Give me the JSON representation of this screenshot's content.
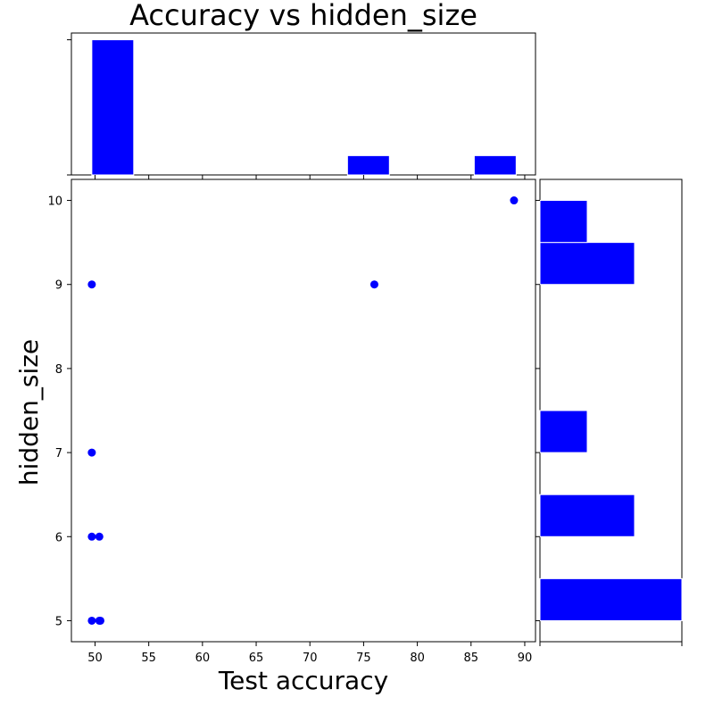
{
  "chart_data": [
    {
      "type": "scatter",
      "title": "Accuracy vs hidden_size",
      "xlabel": "Test accuracy",
      "ylabel": "hidden_size",
      "xlim": [
        47.8,
        91.0
      ],
      "ylim": [
        4.75,
        10.25
      ],
      "xticks": [
        50,
        55,
        60,
        65,
        70,
        75,
        80,
        85,
        90
      ],
      "yticks": [
        5,
        6,
        7,
        8,
        9,
        10
      ],
      "grid": false,
      "marker_color": "#0000ff",
      "points": [
        {
          "x": 49.7,
          "y": 5
        },
        {
          "x": 50.4,
          "y": 5
        },
        {
          "x": 50.5,
          "y": 5
        },
        {
          "x": 49.7,
          "y": 6
        },
        {
          "x": 50.4,
          "y": 6
        },
        {
          "x": 49.7,
          "y": 7
        },
        {
          "x": 49.7,
          "y": 9
        },
        {
          "x": 76.0,
          "y": 9
        },
        {
          "x": 89.0,
          "y": 10
        }
      ]
    },
    {
      "type": "bar",
      "role": "top-marginal-histogram",
      "bar_color": "#0000ff",
      "bins": [
        {
          "x0": 49.7,
          "x1": 53.6,
          "count": 7
        },
        {
          "x0": 73.5,
          "x1": 77.4,
          "count": 1
        },
        {
          "x0": 85.3,
          "x1": 89.2,
          "count": 1
        }
      ],
      "ylim": [
        0,
        7.35
      ]
    },
    {
      "type": "bar",
      "role": "right-marginal-histogram",
      "orientation": "horizontal",
      "bar_color": "#0000ff",
      "bins": [
        {
          "y0": 5.0,
          "y1": 5.5,
          "count": 3
        },
        {
          "y0": 6.0,
          "y1": 6.5,
          "count": 2
        },
        {
          "y0": 7.0,
          "y1": 7.5,
          "count": 1
        },
        {
          "y0": 9.0,
          "y1": 9.5,
          "count": 2
        },
        {
          "y0": 9.5,
          "y1": 10.0,
          "count": 1
        }
      ],
      "xlim": [
        0,
        3.0
      ]
    }
  ]
}
